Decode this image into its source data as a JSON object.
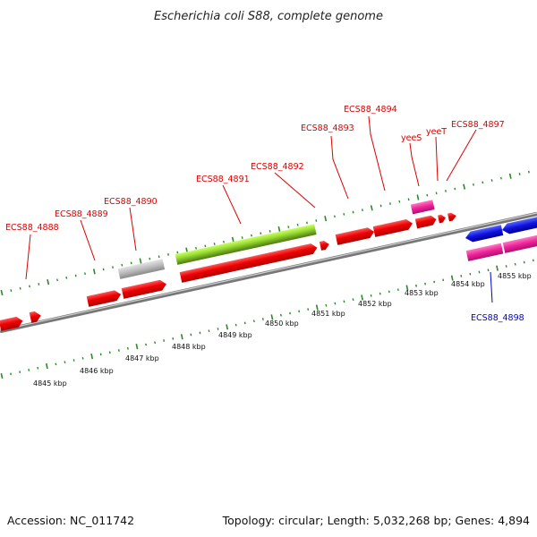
{
  "title": "Escherichia coli S88, complete genome",
  "footer": {
    "accession": "Accession: NC_011742",
    "summary": "Topology: circular; Length: 5,032,268 bp; Genes: 4,894"
  },
  "scale": {
    "unit": "kbp",
    "labels": [
      "4845 kbp",
      "4846 kbp",
      "4847 kbp",
      "4848 kbp",
      "4849 kbp",
      "4850 kbp",
      "4851 kbp",
      "4852 kbp",
      "4853 kbp",
      "4854 kbp",
      "4855 kbp"
    ]
  },
  "gene_labels": [
    {
      "text": "ECS88_4888",
      "color": "#dd0000"
    },
    {
      "text": "ECS88_4889",
      "color": "#dd0000"
    },
    {
      "text": "ECS88_4890",
      "color": "#dd0000"
    },
    {
      "text": "ECS88_4891",
      "color": "#dd0000"
    },
    {
      "text": "ECS88_4892",
      "color": "#dd0000"
    },
    {
      "text": "ECS88_4893",
      "color": "#dd0000"
    },
    {
      "text": "ECS88_4894",
      "color": "#dd0000"
    },
    {
      "text": "yeeS",
      "color": "#dd0000"
    },
    {
      "text": "yeeT",
      "color": "#dd0000"
    },
    {
      "text": "ECS88_4897",
      "color": "#dd0000"
    },
    {
      "text": "ECS88_4898",
      "color": "#0000cc"
    }
  ],
  "colors": {
    "gene_red": "#ee0000",
    "gene_magenta": "#ee2299",
    "gene_blue": "#1111dd",
    "gene_green": "#88cc22",
    "gene_gray": "#bbbbbb",
    "backbone": "#888888",
    "tick": "#2a8a2a"
  }
}
